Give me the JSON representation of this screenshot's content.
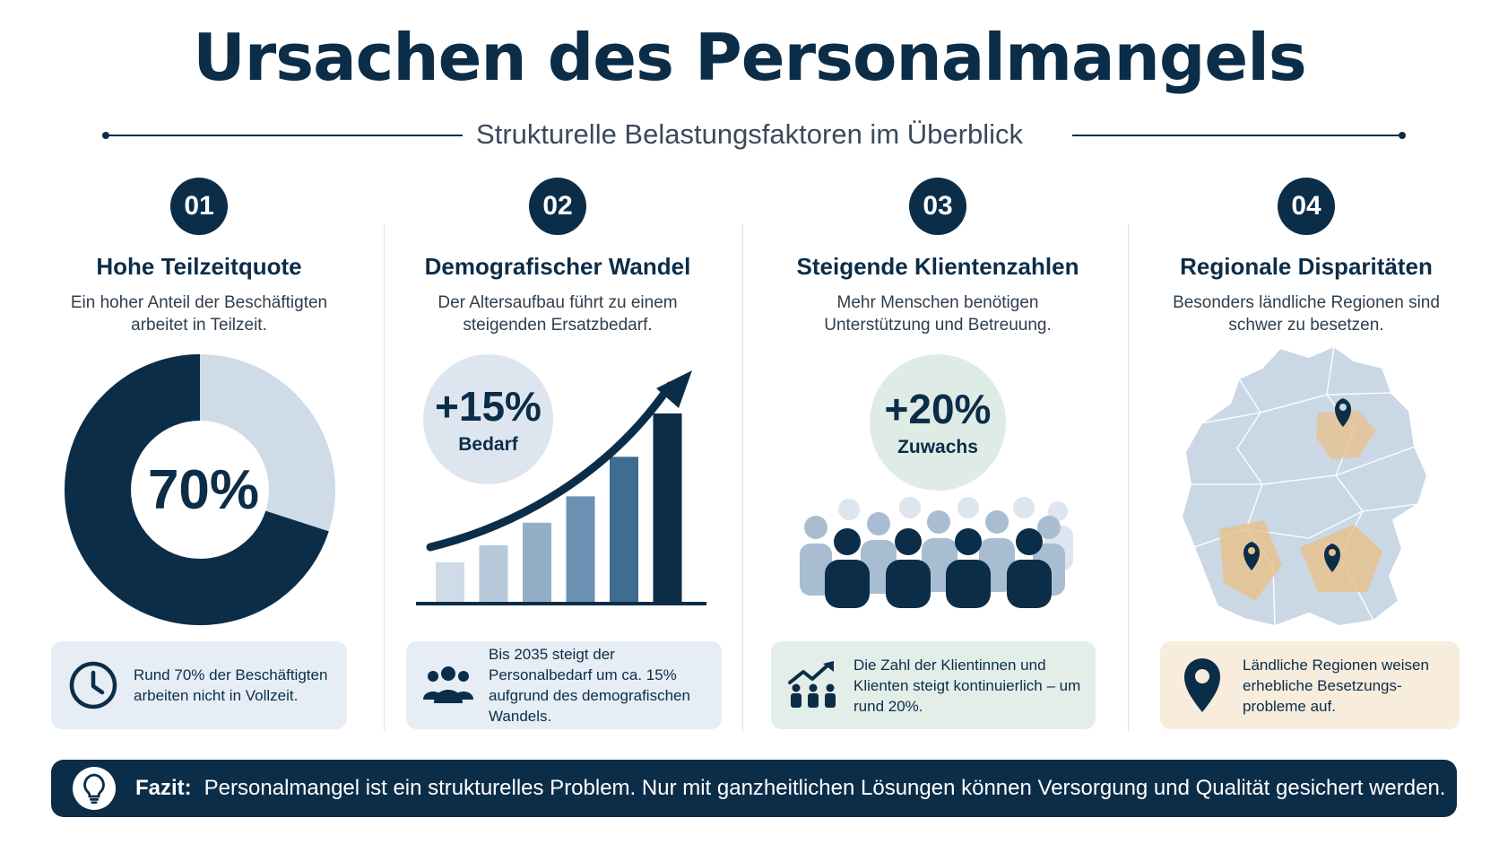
{
  "header": {
    "title": "Ursachen des Personalmangels",
    "subtitle": "Strukturelle Belastungsfaktoren im Überblick"
  },
  "colors": {
    "navy": "#0c2d48",
    "light_blue": "#cfdbe7",
    "box_blue": "#e6edf4",
    "box_green": "#e3eee9",
    "box_orange": "#f8ecdc",
    "orange": "#e8c08a"
  },
  "columns": [
    {
      "number": "01",
      "heading": "Hohe Teilzeitquote",
      "description": "Ein hoher Anteil der Beschäftigten arbeitet in Teilzeit.",
      "stat_value": "70%",
      "stat_fraction": 0.7,
      "box_text": "Rund 70% der Beschäftigten arbeiten nicht in Vollzeit.",
      "box_icon": "clock-icon"
    },
    {
      "number": "02",
      "heading": "Demografischer Wandel",
      "description": "Der Altersaufbau führt zu einem steigenden Ersatzbedarf.",
      "stat_value": "+15%",
      "stat_label": "Bedarf",
      "bar_levels": [
        0.21,
        0.3,
        0.42,
        0.56,
        0.77,
        1.0
      ],
      "box_text": "Bis 2035 steigt der Personalbedarf um ca. 15% aufgrund des demografischen Wandels.",
      "box_icon": "people-group-icon"
    },
    {
      "number": "03",
      "heading": "Steigende Klientenzahlen",
      "description": "Mehr Menschen benötigen Unterstützung und Betreuung.",
      "stat_value": "+20%",
      "stat_label": "Zuwachs",
      "box_text": "Die Zahl der Klientinnen und Klienten steigt kontinuierlich – um rund 20%.",
      "box_icon": "growth-people-icon"
    },
    {
      "number": "04",
      "heading": "Regionale Disparitäten",
      "description": "Besonders ländliche Regionen sind schwer zu besetzen.",
      "box_text": "Ländliche Regionen weisen erhebliche Besetzungs-probleme auf.",
      "box_icon": "map-pin-icon"
    }
  ],
  "fazit": {
    "label": "Fazit:",
    "text": "Personalmangel ist ein strukturelles Problem. Nur mit ganzheitlichen Lösungen können Versorgung und Qualität gesichert werden.",
    "icon": "lightbulb-icon"
  }
}
